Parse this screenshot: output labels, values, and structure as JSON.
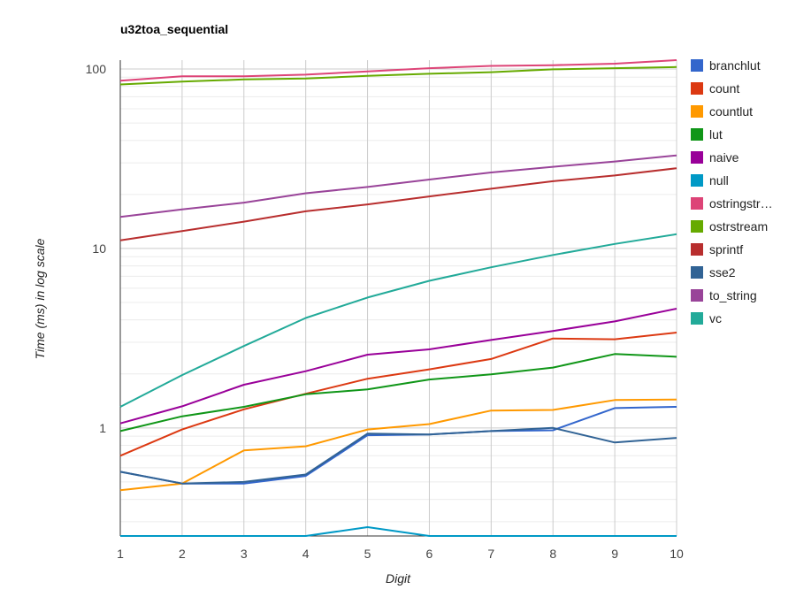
{
  "chart_data": {
    "type": "line",
    "title": "u32toa_sequential",
    "xlabel": "Digit",
    "ylabel": "Time (ms) in log scale",
    "yscale": "log",
    "x": [
      1,
      2,
      3,
      4,
      5,
      6,
      7,
      8,
      9,
      10
    ],
    "x_tick_labels": [
      "1",
      "2",
      "3",
      "4",
      "5",
      "6",
      "7",
      "8",
      "9",
      "10"
    ],
    "y_tick_labels": [
      "1",
      "10",
      "100"
    ],
    "xlim": [
      1,
      10
    ],
    "ylim": [
      0.25,
      112
    ],
    "grid": true,
    "legend_position": "right",
    "series": [
      {
        "name": "branchlut",
        "color": "#3366cc",
        "values": [
          0.57,
          0.49,
          0.49,
          0.54,
          0.91,
          0.92,
          0.96,
          0.97,
          1.29,
          1.31
        ]
      },
      {
        "name": "count",
        "color": "#dc3912",
        "values": [
          0.7,
          0.98,
          1.27,
          1.55,
          1.88,
          2.12,
          2.42,
          3.15,
          3.12,
          3.4
        ]
      },
      {
        "name": "countlut",
        "color": "#ff9900",
        "values": [
          0.45,
          0.49,
          0.75,
          0.79,
          0.98,
          1.05,
          1.25,
          1.26,
          1.43,
          1.44
        ]
      },
      {
        "name": "lut",
        "color": "#109618",
        "values": [
          0.96,
          1.16,
          1.31,
          1.54,
          1.64,
          1.86,
          1.99,
          2.17,
          2.58,
          2.49
        ]
      },
      {
        "name": "naive",
        "color": "#990099",
        "values": [
          1.06,
          1.32,
          1.74,
          2.07,
          2.56,
          2.74,
          3.09,
          3.47,
          3.92,
          4.62
        ]
      },
      {
        "name": "null",
        "color": "#0099c6",
        "values": [
          0.25,
          0.25,
          0.25,
          0.25,
          0.28,
          0.25,
          0.25,
          0.25,
          0.25,
          0.25
        ]
      },
      {
        "name": "ostringstr…",
        "color": "#dd4477",
        "values": [
          86,
          91,
          91,
          93,
          97,
          101,
          104,
          105,
          107,
          112
        ]
      },
      {
        "name": "ostrstream",
        "color": "#66aa00",
        "values": [
          82,
          85,
          87.5,
          88.5,
          91.5,
          94,
          96,
          99.5,
          101,
          102.5
        ]
      },
      {
        "name": "sprintf",
        "color": "#b82e2e",
        "values": [
          11.1,
          12.5,
          14.1,
          16.1,
          17.6,
          19.5,
          21.5,
          23.7,
          25.5,
          28.0
        ]
      },
      {
        "name": "sse2",
        "color": "#316395",
        "values": [
          0.57,
          0.49,
          0.5,
          0.55,
          0.93,
          0.92,
          0.96,
          1.0,
          0.83,
          0.88
        ]
      },
      {
        "name": "to_string",
        "color": "#994499",
        "values": [
          15.0,
          16.5,
          18.0,
          20.3,
          22.0,
          24.2,
          26.5,
          28.5,
          30.5,
          33.0
        ]
      },
      {
        "name": "vc",
        "color": "#22aa99",
        "values": [
          1.31,
          1.97,
          2.86,
          4.1,
          5.33,
          6.6,
          7.85,
          9.2,
          10.6,
          12.0
        ]
      }
    ]
  }
}
